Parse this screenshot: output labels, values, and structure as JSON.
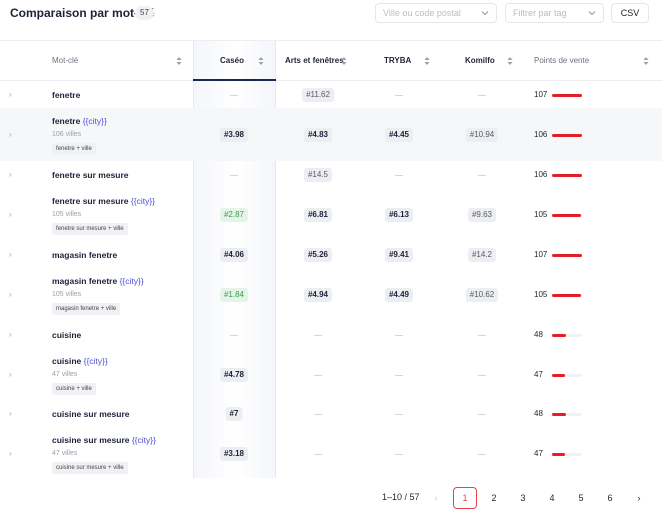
{
  "header": {
    "title": "Comparaison par mot-clé",
    "count": "57",
    "city_placeholder": "Ville ou code postal",
    "tag_placeholder": "Filtrer par tag",
    "csv_label": "CSV"
  },
  "columns": {
    "keyword": "Mot-clé",
    "caseo": "Caséo",
    "arts": "Arts et fenêtres",
    "tryba": "TRYBA",
    "komilfo": "Komilfo",
    "points": "Points de vente"
  },
  "rows": [
    {
      "kw": "fenetre",
      "city": "",
      "sub": "",
      "tag": "",
      "caseo": "—",
      "arts": "#11.62",
      "tryba": "—",
      "komilfo": "—",
      "pv": "107",
      "bar": 1.0
    },
    {
      "kw": "fenetre ",
      "city": "{{city}}",
      "sub": "106 villes",
      "tag": "fenetre + ville",
      "caseo": "#3.98",
      "arts": "#4.83",
      "tryba": "#4.45",
      "komilfo": "#10.94",
      "pv": "106",
      "bar": 0.99
    },
    {
      "kw": "fenetre sur mesure",
      "city": "",
      "sub": "",
      "tag": "",
      "caseo": "—",
      "arts": "#14.5",
      "tryba": "—",
      "komilfo": "—",
      "pv": "106",
      "bar": 0.99
    },
    {
      "kw": "fenetre sur mesure ",
      "city": "{{city}}",
      "sub": "105 villes",
      "tag": "fenetre sur mesure + ville",
      "caseo": "#2.87",
      "arts": "#6.81",
      "tryba": "#6.13",
      "komilfo": "#9.63",
      "pv": "105",
      "bar": 0.98
    },
    {
      "kw": "magasin fenetre",
      "city": "",
      "sub": "",
      "tag": "",
      "caseo": "#4.06",
      "arts": "#5.26",
      "tryba": "#9.41",
      "komilfo": "#14.2",
      "pv": "107",
      "bar": 1.0
    },
    {
      "kw": "magasin fenetre ",
      "city": "{{city}}",
      "sub": "105 villes",
      "tag": "magasin fenetre + ville",
      "caseo": "#1.84",
      "arts": "#4.94",
      "tryba": "#4.49",
      "komilfo": "#10.62",
      "pv": "105",
      "bar": 0.98
    },
    {
      "kw": "cuisine",
      "city": "",
      "sub": "",
      "tag": "",
      "caseo": "—",
      "arts": "—",
      "tryba": "—",
      "komilfo": "—",
      "pv": "48",
      "bar": 0.45
    },
    {
      "kw": "cuisine ",
      "city": "{{city}}",
      "sub": "47 villes",
      "tag": "cuisine + ville",
      "caseo": "#4.78",
      "arts": "—",
      "tryba": "—",
      "komilfo": "—",
      "pv": "47",
      "bar": 0.44
    },
    {
      "kw": "cuisine sur mesure",
      "city": "",
      "sub": "",
      "tag": "",
      "caseo": "#7",
      "arts": "—",
      "tryba": "—",
      "komilfo": "—",
      "pv": "48",
      "bar": 0.45
    },
    {
      "kw": "cuisine sur mesure ",
      "city": "{{city}}",
      "sub": "47 villes",
      "tag": "cuisine sur mesure + ville",
      "caseo": "#3.18",
      "arts": "—",
      "tryba": "—",
      "komilfo": "—",
      "pv": "47",
      "bar": 0.44
    }
  ],
  "pagination": {
    "range": "1–10 / 57",
    "pages": [
      "1",
      "2",
      "3",
      "4",
      "5",
      "6"
    ],
    "prev": "‹",
    "next": "›"
  },
  "colors": {
    "accent": "#e21f26",
    "navy": "#1c2751",
    "city": "#4f4fd6",
    "good": "#3a9a4c"
  }
}
